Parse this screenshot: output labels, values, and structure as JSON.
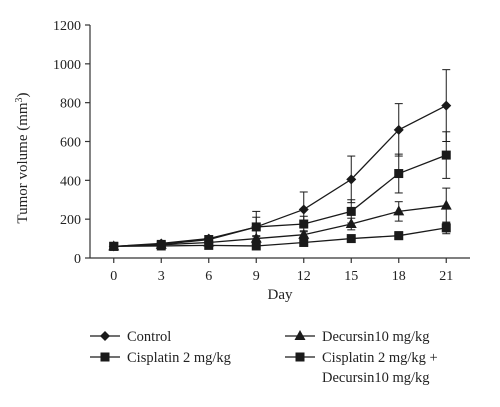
{
  "chart_data": {
    "type": "line",
    "xlabel": "Day",
    "ylabel": "Tumor volume (mm",
    "ylabel_sup": "3",
    "ylabel_close": ")",
    "x": [
      0,
      3,
      6,
      9,
      12,
      15,
      18,
      21
    ],
    "x_ticks": [
      "0",
      "3",
      "6",
      "9",
      "12",
      "15",
      "18",
      "21"
    ],
    "y_ticks": [
      "0",
      "200",
      "400",
      "600",
      "800",
      "1000",
      "1200"
    ],
    "y_tick_values": [
      0,
      200,
      400,
      600,
      800,
      1000,
      1200
    ],
    "xlim": [
      -1.5,
      22.5
    ],
    "ylim": [
      0,
      1200
    ],
    "grid": false,
    "legend_position": "bottom",
    "series": [
      {
        "name": "Control",
        "marker": "diamond",
        "values": [
          60,
          75,
          100,
          160,
          250,
          405,
          660,
          785
        ],
        "errors": [
          6,
          8,
          15,
          80,
          90,
          120,
          135,
          185
        ]
      },
      {
        "name": "Cisplatin 2 mg/kg",
        "marker": "square",
        "values": [
          60,
          70,
          95,
          160,
          175,
          240,
          435,
          530
        ],
        "errors": [
          6,
          8,
          12,
          50,
          40,
          60,
          100,
          120
        ]
      },
      {
        "name": "Decursin10 mg/kg",
        "marker": "triangle",
        "values": [
          60,
          68,
          80,
          100,
          120,
          175,
          240,
          270
        ],
        "errors": [
          5,
          6,
          10,
          15,
          20,
          30,
          50,
          90
        ]
      },
      {
        "name_lines": [
          "Cisplatin 2 mg/kg +",
          "Decursin10 mg/kg"
        ],
        "marker": "square",
        "values": [
          60,
          62,
          65,
          62,
          80,
          100,
          115,
          155
        ],
        "errors": [
          5,
          5,
          8,
          8,
          10,
          15,
          20,
          30
        ]
      }
    ],
    "colors": {
      "line": "#1a1a1a",
      "axis": "#333333"
    }
  }
}
